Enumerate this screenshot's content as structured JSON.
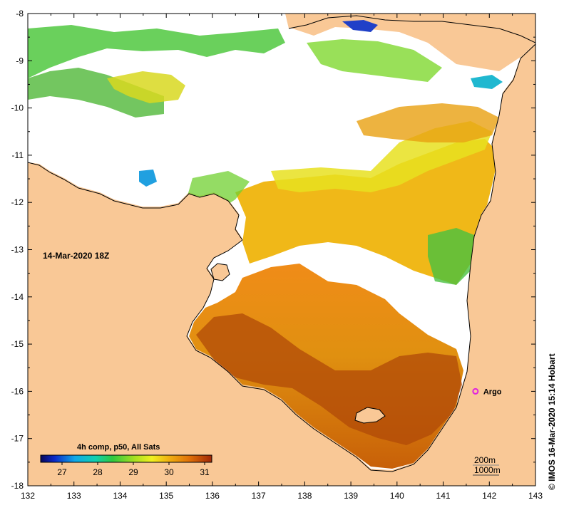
{
  "map": {
    "date_label": "14-Mar-2020 18Z",
    "credit": "©  IMOS 16-Mar-2020 15:14 Hobart",
    "x_ticks": [
      {
        "value": 132,
        "label": "132"
      },
      {
        "value": 133,
        "label": "133"
      },
      {
        "value": 134,
        "label": "134"
      },
      {
        "value": 135,
        "label": "135"
      },
      {
        "value": 136,
        "label": "136"
      },
      {
        "value": 137,
        "label": "137"
      },
      {
        "value": 138,
        "label": "138"
      },
      {
        "value": 139,
        "label": "139"
      },
      {
        "value": 140,
        "label": "140"
      },
      {
        "value": 141,
        "label": "141"
      },
      {
        "value": 142,
        "label": "142"
      },
      {
        "value": 143,
        "label": "143"
      }
    ],
    "y_ticks": [
      {
        "value": -8,
        "label": "-8"
      },
      {
        "value": -9,
        "label": "-9"
      },
      {
        "value": -10,
        "label": "-10"
      },
      {
        "value": -11,
        "label": "-11"
      },
      {
        "value": -12,
        "label": "-12"
      },
      {
        "value": -13,
        "label": "-13"
      },
      {
        "value": -14,
        "label": "-14"
      },
      {
        "value": -15,
        "label": "-15"
      },
      {
        "value": -16,
        "label": "-16"
      },
      {
        "value": -17,
        "label": "-17"
      },
      {
        "value": -18,
        "label": "-18"
      }
    ],
    "xlim": [
      132,
      143
    ],
    "ylim": [
      -18,
      -8
    ],
    "colorbar": {
      "title": "4h comp, p50, All Sats",
      "min": 26.4,
      "max": 31.2,
      "labels": [
        {
          "value": 27,
          "label": "27"
        },
        {
          "value": 28,
          "label": "28"
        },
        {
          "value": 29,
          "label": "29"
        },
        {
          "value": 30,
          "label": "30"
        },
        {
          "value": 31,
          "label": "31"
        }
      ]
    },
    "argo": {
      "label": "Argo",
      "lon": 141.7,
      "lat": -16.0
    },
    "contours_legend": [
      "200m",
      "1000m"
    ],
    "colors": {
      "land": "#F9C896",
      "no_data": "#FFFFFF",
      "argo_marker": "#E020E0"
    }
  }
}
